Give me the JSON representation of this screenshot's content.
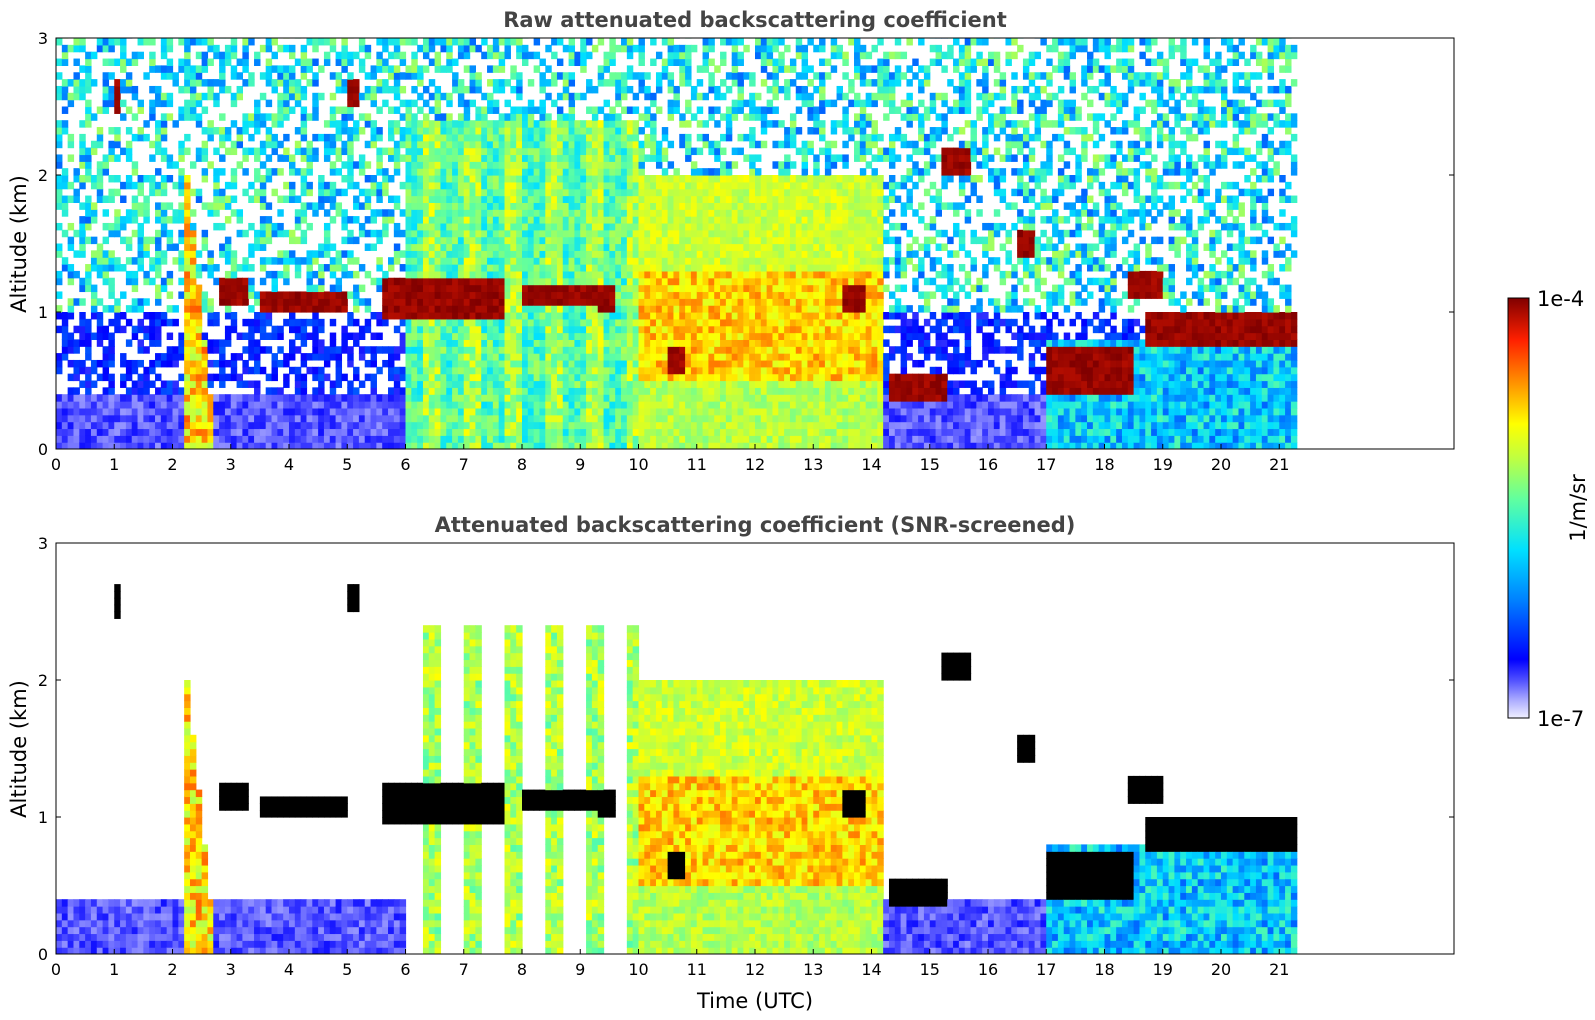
{
  "chart_data": [
    {
      "type": "heatmap",
      "title": "Raw attenuated backscattering coefficient",
      "xlabel": "",
      "ylabel": "Altitude (km)",
      "xlim": [
        0,
        24
      ],
      "ylim": [
        0,
        3
      ],
      "xticks": [
        "0",
        "1",
        "2",
        "3",
        "4",
        "5",
        "6",
        "7",
        "8",
        "9",
        "10",
        "11",
        "12",
        "13",
        "14",
        "15",
        "16",
        "17",
        "18",
        "19",
        "20",
        "21"
      ],
      "yticks": [
        "0",
        "1",
        "2",
        "3"
      ],
      "data_extent_hours": [
        0,
        21.3
      ],
      "grid": false,
      "screened": false,
      "features": [
        {
          "name": "boundary layer",
          "t": [
            0,
            21.3
          ],
          "altitude_km": [
            0,
            0.4
          ]
        },
        {
          "name": "cloud layer",
          "t": [
            2.8,
            3.3
          ],
          "altitude_km": [
            1.0,
            1.3
          ]
        },
        {
          "name": "cloud layer",
          "t": [
            3.5,
            5.0
          ],
          "altitude_km": [
            1.0,
            1.15
          ]
        },
        {
          "name": "cloud layer",
          "t": [
            5.6,
            7.7
          ],
          "altitude_km": [
            0.95,
            1.25
          ]
        },
        {
          "name": "aerosol/cloud region",
          "t": [
            10.0,
            14.2
          ],
          "altitude_km": [
            0,
            2.0
          ]
        },
        {
          "name": "cloud layer",
          "t": [
            14.3,
            15.3
          ],
          "altitude_km": [
            0.35,
            0.55
          ]
        },
        {
          "name": "cloud layer",
          "t": [
            15.2,
            15.7
          ],
          "altitude_km": [
            2.0,
            2.2
          ]
        },
        {
          "name": "cloud layer",
          "t": [
            17.0,
            18.5
          ],
          "altitude_km": [
            0.4,
            0.75
          ]
        },
        {
          "name": "cloud layer",
          "t": [
            18.7,
            21.3
          ],
          "altitude_km": [
            0.75,
            1.0
          ]
        }
      ]
    },
    {
      "type": "heatmap",
      "title": "Attenuated backscattering coefficient (SNR-screened)",
      "xlabel": "Time (UTC)",
      "ylabel": "Altitude (km)",
      "xlim": [
        0,
        24
      ],
      "ylim": [
        0,
        3
      ],
      "xticks": [
        "0",
        "1",
        "2",
        "3",
        "4",
        "5",
        "6",
        "7",
        "8",
        "9",
        "10",
        "11",
        "12",
        "13",
        "14",
        "15",
        "16",
        "17",
        "18",
        "19",
        "20",
        "21"
      ],
      "yticks": [
        "0",
        "1",
        "2",
        "3"
      ],
      "data_extent_hours": [
        0,
        21.3
      ],
      "grid": false,
      "screened": true
    }
  ],
  "colorbar": {
    "label": "1/m/sr",
    "max_label": "1e-4",
    "min_label": "1e-7",
    "colormap": "jet",
    "colors": [
      "#f0f0ff",
      "#7b7bff",
      "#0000ff",
      "#0080ff",
      "#00d0ff",
      "#40ffc0",
      "#a0ff60",
      "#ffff00",
      "#ffb000",
      "#ff4000",
      "#c00000",
      "#800000"
    ]
  }
}
